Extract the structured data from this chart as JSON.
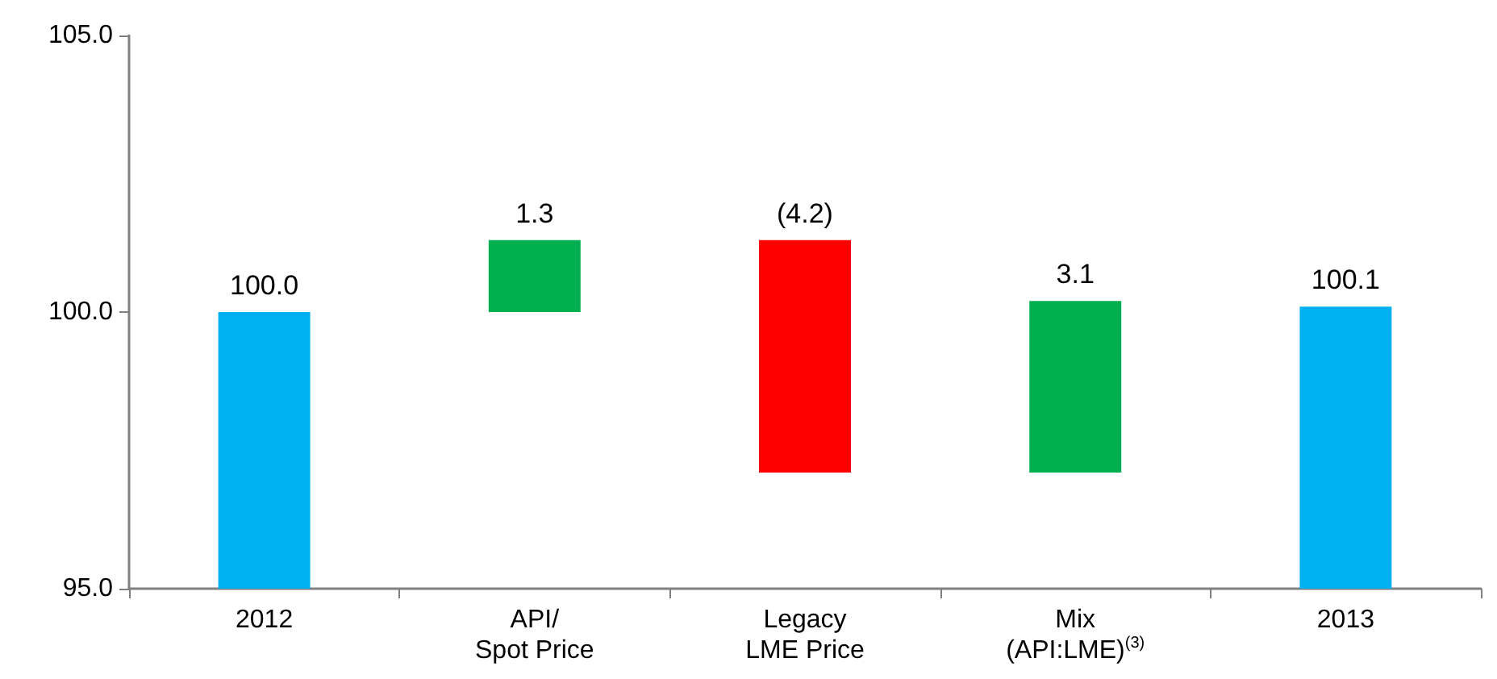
{
  "chart_data": {
    "type": "bar",
    "categories": [
      "2012",
      "API/\nSpot Price",
      "Legacy\nLME Price",
      "Mix\n(API:LME)$^{(3)}$",
      "2013"
    ],
    "values": [
      100.0,
      1.3,
      -4.2,
      3.1,
      100.1
    ],
    "base": [
      null,
      100.0,
      101.3,
      97.1,
      null
    ],
    "colors": [
      "#00b0f0",
      "#00b050",
      "#ff0000",
      "#00b050",
      "#00b0f0"
    ],
    "value_labels": [
      "100.0",
      "1.3",
      "(4.2)",
      "3.1",
      "100.1"
    ],
    "ylim": [
      95,
      105
    ],
    "yticks": [
      {
        "value": 95,
        "label": "95.0"
      },
      {
        "value": 100,
        "label": "100.0"
      },
      {
        "value": 105,
        "label": "105.0"
      }
    ],
    "grid": false
  }
}
